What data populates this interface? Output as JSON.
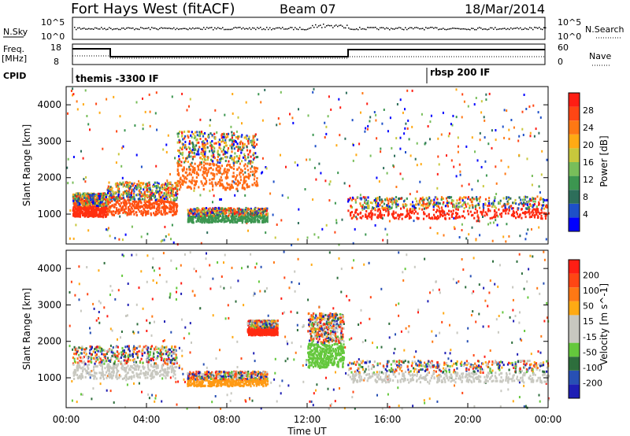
{
  "header": {
    "title": "Fort Hays West (fitACF)",
    "beam": "Beam 07",
    "date": "18/Mar/2014"
  },
  "summary": {
    "nsky_label": "N.Sky",
    "nsearch_label": "N.Search",
    "nsky_ticks": [
      "10^5",
      "10^0"
    ],
    "nsearch_ticks": [
      "10^5",
      "10^0"
    ],
    "freq_label": "Freq.",
    "freq_unit": "[MHz]",
    "freq_ticks": [
      "18",
      "8"
    ],
    "nave_label": "Nave",
    "nave_ticks": [
      "60",
      "0"
    ],
    "cpid_label": "CPID",
    "cpid_segments": [
      {
        "label": "themis -3300 IF",
        "start_hour": 0
      },
      {
        "label": "rbsp 200 IF",
        "start_hour": 17.9
      }
    ]
  },
  "chart_data": [
    {
      "type": "heatmap",
      "name": "power",
      "ylabel": "Slant Range [km]",
      "xlabel": "",
      "xlim": [
        0,
        24
      ],
      "ylim": [
        180,
        4500
      ],
      "yticks": [
        1000,
        2000,
        3000,
        4000
      ],
      "colorbar": {
        "label": "Power [dB]",
        "ticks": [
          "28",
          "24",
          "20",
          "16",
          "12",
          "8",
          "4"
        ],
        "colors": [
          "#0000ff",
          "#1e50c8",
          "#2d6e5a",
          "#3c9650",
          "#78be5a",
          "#c8c83c",
          "#ffaa14",
          "#ff7814",
          "#ff4614",
          "#ff1e14"
        ]
      },
      "bands": [
        {
          "start": 0.3,
          "end": 2.0,
          "low": 950,
          "high": 1600,
          "core": "#ff3010"
        },
        {
          "start": 2.0,
          "end": 5.5,
          "low": 1000,
          "high": 1900,
          "core": "#ff5010"
        },
        {
          "start": 5.5,
          "end": 9.5,
          "low": 1700,
          "high": 3300,
          "core": "#ff6a14"
        },
        {
          "start": 14.0,
          "end": 24.0,
          "low": 900,
          "high": 1500,
          "core": "#ff2a10"
        },
        {
          "start": 6.0,
          "end": 10.0,
          "low": 800,
          "high": 1200,
          "core": "#3c9650"
        }
      ]
    },
    {
      "type": "heatmap",
      "name": "velocity",
      "ylabel": "Slant Range [km]",
      "xlabel": "Time UT",
      "xlim": [
        0,
        24
      ],
      "ylim": [
        180,
        4500
      ],
      "yticks": [
        1000,
        2000,
        3000,
        4000
      ],
      "xticks": [
        "00:00",
        "04:00",
        "08:00",
        "12:00",
        "16:00",
        "20:00",
        "00:00"
      ],
      "colorbar": {
        "label": "Velocity [m s^-1]",
        "ticks": [
          "200",
          "100",
          "50",
          "15",
          "-15",
          "-50",
          "-100",
          "-200"
        ],
        "colors": [
          "#1e1eb4",
          "#2850b4",
          "#2d6e3c",
          "#64c83c",
          "#c8c8c0",
          "#c8c8c0",
          "#ffaa14",
          "#ff7814",
          "#ff4614",
          "#ff1e14"
        ]
      },
      "bands": [
        {
          "start": 0.3,
          "end": 5.5,
          "low": 1000,
          "high": 1900,
          "core": "#c8c8c0"
        },
        {
          "start": 6.0,
          "end": 10.0,
          "low": 800,
          "high": 1200,
          "core": "#ff9a14"
        },
        {
          "start": 9.0,
          "end": 10.5,
          "low": 2200,
          "high": 2600,
          "core": "#ff2a10"
        },
        {
          "start": 12.0,
          "end": 13.8,
          "low": 1300,
          "high": 2800,
          "core": "#64c83c"
        },
        {
          "start": 14.0,
          "end": 24.0,
          "low": 900,
          "high": 1500,
          "core": "#c8c8c0"
        }
      ]
    }
  ]
}
